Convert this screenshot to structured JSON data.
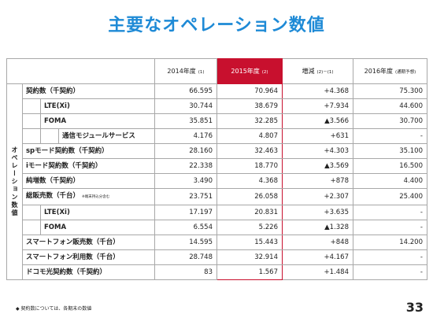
{
  "header": {
    "title": "主要なオペレーション数値"
  },
  "table": {
    "columns": [
      {
        "label": "2014年度",
        "note": "(1)"
      },
      {
        "label": "2015年度",
        "note": "(2)"
      },
      {
        "label": "増減",
        "note": "(2)－(1)"
      },
      {
        "label": "2016年度",
        "note": "(通期予想)"
      }
    ],
    "group": "オペレーション数値",
    "rows": [
      {
        "label": "契約数（千契約）",
        "values": [
          "66.595",
          "70.964",
          "+4.368",
          "75.300"
        ],
        "children": [
          {
            "label": "LTE(Xi)",
            "values": [
              "30.744",
              "38.679",
              "+7.934",
              "44.600"
            ]
          },
          {
            "label": "FOMA",
            "values": [
              "35.851",
              "32.285",
              "▲3.566",
              "30.700"
            ],
            "children": [
              {
                "label": "通信モジュールサービス",
                "values": [
                  "4.176",
                  "4.807",
                  "+631",
                  "-"
                ]
              }
            ]
          }
        ]
      },
      {
        "label": "spモード契約数（千契約）",
        "values": [
          "28.160",
          "32.463",
          "+4.303",
          "35.100"
        ]
      },
      {
        "label": "iモード契約数（千契約）",
        "values": [
          "22.338",
          "18.770",
          "▲3.569",
          "16.500"
        ]
      },
      {
        "label": "純増数（千契約）",
        "values": [
          "3.490",
          "4.368",
          "+878",
          "4.400"
        ]
      },
      {
        "label": "総販売数（千台）",
        "note": "※端末持込分含む",
        "values": [
          "23.751",
          "26.058",
          "+2.307",
          "25.400"
        ],
        "children": [
          {
            "label": "LTE(Xi)",
            "values": [
              "17.197",
              "20.831",
              "+3.635",
              "-"
            ]
          },
          {
            "label": "FOMA",
            "values": [
              "6.554",
              "5.226",
              "▲1.328",
              "-"
            ]
          }
        ]
      },
      {
        "label": "スマートフォン販売数（千台）",
        "values": [
          "14.595",
          "15.443",
          "+848",
          "14.200"
        ]
      },
      {
        "label": "スマートフォン利用数（千台）",
        "values": [
          "28.748",
          "32.914",
          "+4.167",
          "-"
        ]
      },
      {
        "label": "ドコモ光契約数（千契約）",
        "values": [
          "83",
          "1.567",
          "+1.484",
          "-"
        ]
      }
    ]
  },
  "footer": {
    "note": "◆ 契約数については、各期末の数値",
    "page": "33"
  }
}
